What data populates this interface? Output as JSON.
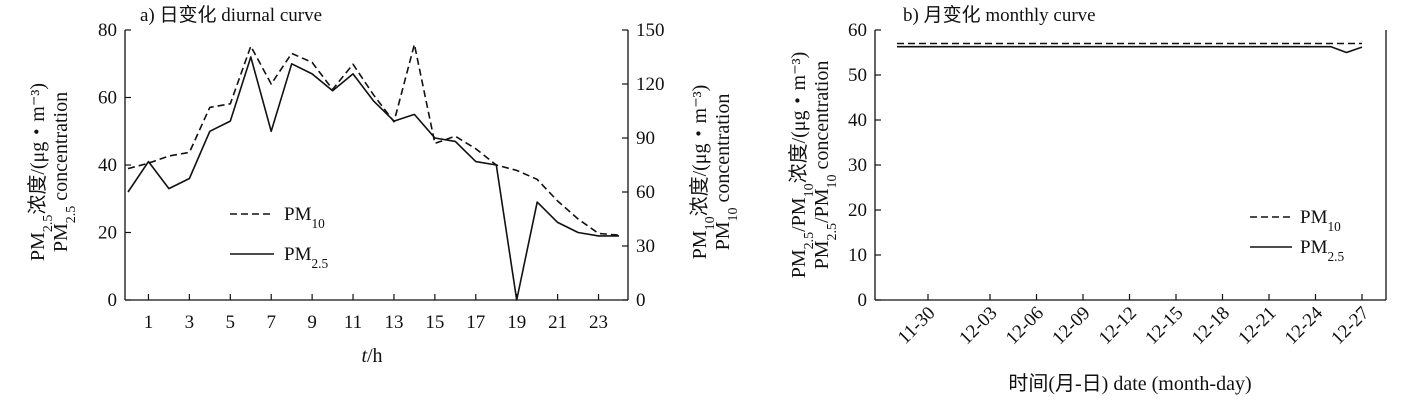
{
  "chart_data": [
    {
      "type": "line",
      "panel_label": "a) 日变化 diurnal curve",
      "xlabel_italic": "t",
      "xlabel_unit": "/h",
      "x_tick_labels": [
        "1",
        "3",
        "5",
        "7",
        "9",
        "11",
        "13",
        "15",
        "17",
        "19",
        "21",
        "23"
      ],
      "x_tick_values": [
        1,
        3,
        5,
        7,
        9,
        11,
        13,
        15,
        17,
        19,
        21,
        23
      ],
      "xlim": [
        0,
        25
      ],
      "y_left_ticks": [
        0,
        20,
        40,
        60,
        80
      ],
      "ylim_left": [
        0,
        80
      ],
      "y_right_ticks": [
        0,
        30,
        60,
        90,
        120,
        150
      ],
      "ylim_right": [
        0,
        150
      ],
      "ylabel_left_line1": "PM2.5浓度/(μg・m⁻³)",
      "ylabel_left_line2": "PM2.5 concentration",
      "ylabel_right_line1": "PM10浓度/(μg・m⁻³)",
      "ylabel_right_line2": "PM10 concentration",
      "legend_position": "middle-left",
      "series": [
        {
          "name": "PM10",
          "axis": "right",
          "style": "dashed",
          "x": [
            0,
            1,
            2,
            3,
            4,
            5,
            6,
            7,
            8,
            9,
            10,
            11,
            12,
            13,
            14,
            15,
            16,
            17,
            18,
            19,
            20,
            21,
            22,
            23,
            24
          ],
          "values": [
            73,
            76,
            80,
            82,
            107,
            109,
            141,
            120,
            137,
            132,
            117,
            131,
            114,
            99,
            142,
            87,
            91,
            84,
            75,
            72,
            67,
            55,
            45,
            37,
            36
          ]
        },
        {
          "name": "PM2.5",
          "axis": "left",
          "style": "solid",
          "x": [
            0,
            1,
            2,
            3,
            4,
            5,
            6,
            7,
            8,
            9,
            10,
            11,
            12,
            13,
            14,
            15,
            16,
            17,
            18,
            19,
            20,
            21,
            22,
            23,
            24
          ],
          "values": [
            32,
            41,
            33,
            36,
            50,
            53,
            72,
            50,
            70,
            67,
            62,
            67,
            59,
            53,
            55,
            48,
            47,
            41,
            40,
            0,
            29,
            23,
            20,
            19,
            19
          ]
        }
      ]
    },
    {
      "type": "line",
      "panel_label": "b) 月变化 monthly curve",
      "x_tick_labels": [
        "11-30",
        "12-03",
        "12-06",
        "12-09",
        "12-12",
        "12-15",
        "12-18",
        "12-21",
        "12-24",
        "12-27"
      ],
      "xlabel": "时间(月-日) date (month-day)",
      "y_ticks": [
        0,
        10,
        20,
        30,
        40,
        50,
        60
      ],
      "ylim": [
        0,
        60
      ],
      "ylabel_line1": "PM2.5/PM10浓度/(μg・m⁻³)",
      "ylabel_line2": "PM2.5/PM10 concentration",
      "legend_position": "middle-right",
      "series": [
        {
          "name": "PM10",
          "style": "dashed",
          "x": [
            "11-28",
            "12-27"
          ],
          "values": [
            57,
            57
          ]
        },
        {
          "name": "PM2.5",
          "style": "solid",
          "x": [
            "11-28",
            "11-30",
            "12-03",
            "12-06",
            "12-09",
            "12-12",
            "12-15",
            "12-18",
            "12-21",
            "12-24",
            "12-25",
            "12-26",
            "12-27"
          ],
          "values": [
            56.3,
            56.3,
            56.3,
            56.3,
            56.3,
            56.3,
            56.3,
            56.3,
            56.3,
            56.3,
            56.3,
            55.0,
            56.2
          ]
        }
      ]
    }
  ]
}
